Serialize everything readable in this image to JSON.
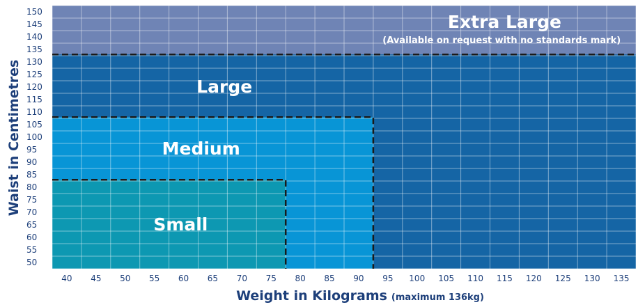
{
  "chart_data": {
    "type": "area",
    "title": "",
    "xlabel": "Weight in Kilograms",
    "xlabel_note": "(maximum 136kg)",
    "ylabel": "Waist in Centimetres",
    "x_ticks": [
      "40",
      "45",
      "50",
      "55",
      "60",
      "65",
      "70",
      "75",
      "80",
      "85",
      "90",
      "95",
      "100",
      "105",
      "110",
      "115",
      "120",
      "125",
      "130",
      "135"
    ],
    "y_ticks": [
      "50",
      "55",
      "60",
      "65",
      "70",
      "75",
      "80",
      "85",
      "90",
      "95",
      "100",
      "105",
      "110",
      "115",
      "120",
      "125",
      "130",
      "135",
      "140",
      "145",
      "150"
    ],
    "xlim": [
      37.5,
      137.5
    ],
    "ylim": [
      47.5,
      152.5
    ],
    "grid": true,
    "zones": [
      {
        "name": "Extra Large",
        "note": "(Available on request with no standards mark)",
        "x_max": 137.5,
        "y_max": 152.5,
        "color": "#6f84b5",
        "border": "none"
      },
      {
        "name": "Large",
        "note": "",
        "x_max": 137.5,
        "y_max": 133,
        "color": "#1565a5",
        "border": "top"
      },
      {
        "name": "Medium",
        "note": "",
        "x_max": 92.5,
        "y_max": 108,
        "color": "#0895d6",
        "border": "top-right"
      },
      {
        "name": "Small",
        "note": "",
        "x_max": 77.5,
        "y_max": 83,
        "color": "#0d98b2",
        "border": "top-right"
      }
    ]
  }
}
